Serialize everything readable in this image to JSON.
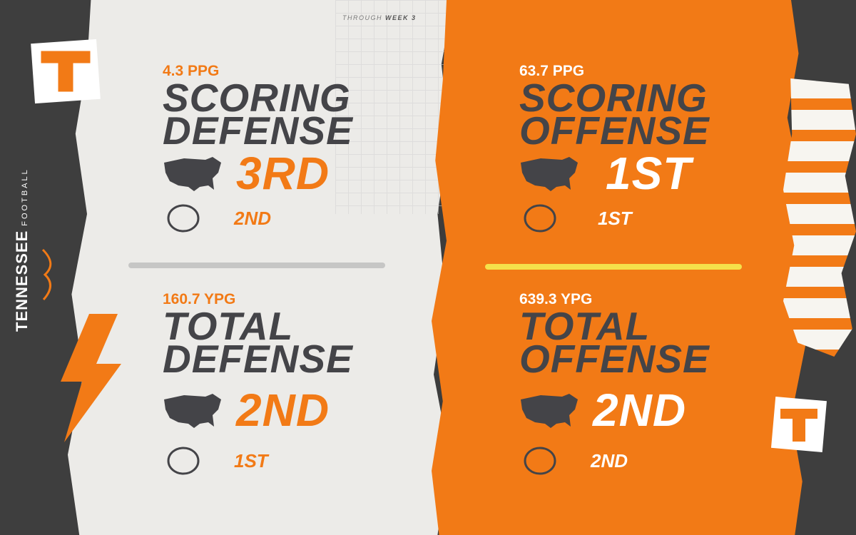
{
  "header": {
    "note_prefix": "THROUGH",
    "note_emphasis": "WEEK 3"
  },
  "branding": {
    "team": "TENNESSEE",
    "team_sub": "FOOTBALL",
    "logo_letter": "T"
  },
  "colors": {
    "orange": "#f27a16",
    "dark": "#3e3e3e",
    "paper": "#ecebe8",
    "text_dark": "#444448",
    "accent_yellow": "#f5e14a"
  },
  "icons": {
    "national": "usa-map-icon",
    "conference": "sec-logo-icon"
  },
  "stats": {
    "scoring_defense": {
      "value": "4.3 PPG",
      "title_line1": "SCORING",
      "title_line2": "DEFENSE",
      "national_rank": "3RD",
      "sec_rank": "2ND"
    },
    "scoring_offense": {
      "value": "63.7 PPG",
      "title_line1": "SCORING",
      "title_line2": "OFFENSE",
      "national_rank": "1ST",
      "sec_rank": "1ST"
    },
    "total_defense": {
      "value": "160.7 YPG",
      "title_line1": "TOTAL",
      "title_line2": "DEFENSE",
      "national_rank": "2ND",
      "sec_rank": "1ST"
    },
    "total_offense": {
      "value": "639.3 YPG",
      "title_line1": "TOTAL",
      "title_line2": "OFFENSE",
      "national_rank": "2ND",
      "sec_rank": "2ND"
    }
  }
}
